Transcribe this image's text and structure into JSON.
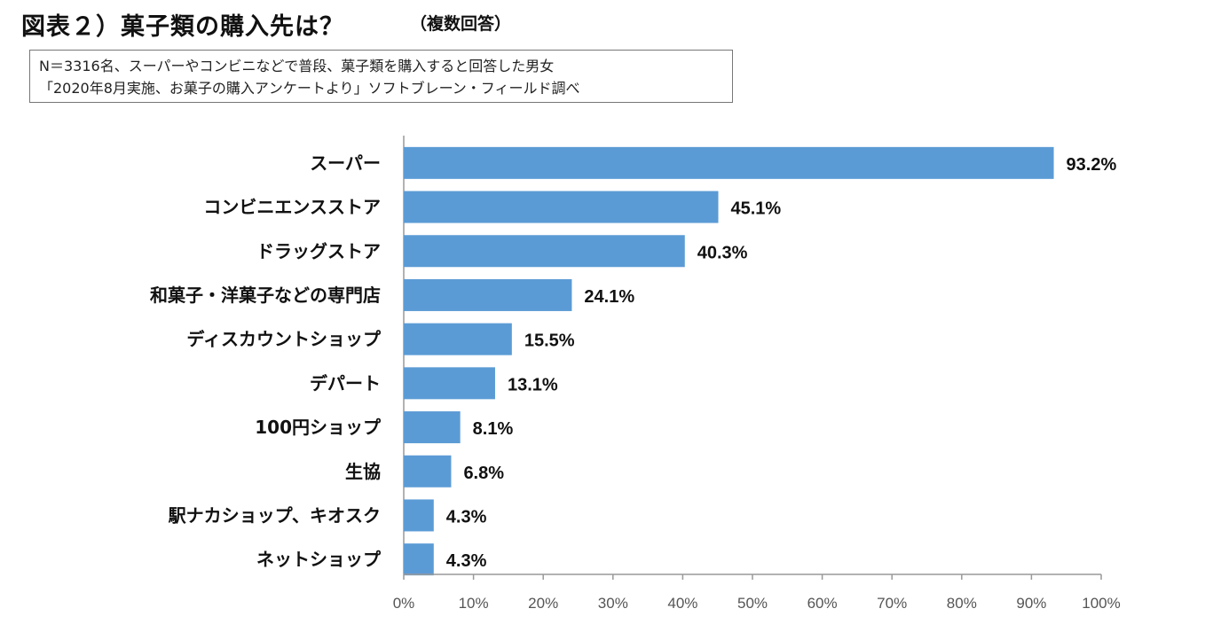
{
  "header": {
    "title": "図表２）菓子類の購入先は？",
    "subtitle": "（複数回答）"
  },
  "note": {
    "line1": "N＝3316名、スーパーやコンビニなどで普段、菓子類を購入すると回答した男女",
    "line2": "「2020年8月実施、お菓子の購入アンケートより」ソフトブレーン・フィールド調べ"
  },
  "colors": {
    "bar": "#5b9bd5",
    "axis": "#999999"
  },
  "chart_data": {
    "type": "bar",
    "orientation": "horizontal",
    "categories": [
      "スーパー",
      "コンビニエンスストア",
      "ドラッグストア",
      "和菓子・洋菓子などの専門店",
      "ディスカウントショップ",
      "デパート",
      "100円ショップ",
      "生協",
      "駅ナカショップ、キオスク",
      "ネットショップ"
    ],
    "values": [
      93.2,
      45.1,
      40.3,
      24.1,
      15.5,
      13.1,
      8.1,
      6.8,
      4.3,
      4.3
    ],
    "value_labels": [
      "93.2%",
      "45.1%",
      "40.3%",
      "24.1%",
      "15.5%",
      "13.1%",
      "8.1%",
      "6.8%",
      "4.3%",
      "4.3%"
    ],
    "xlim": [
      0,
      100
    ],
    "xticks": [
      0,
      10,
      20,
      30,
      40,
      50,
      60,
      70,
      80,
      90,
      100
    ],
    "xtick_labels": [
      "0%",
      "10%",
      "20%",
      "30%",
      "40%",
      "50%",
      "60%",
      "70%",
      "80%",
      "90%",
      "100%"
    ],
    "xlabel": "",
    "ylabel": "",
    "grid": false,
    "legend": "none"
  }
}
